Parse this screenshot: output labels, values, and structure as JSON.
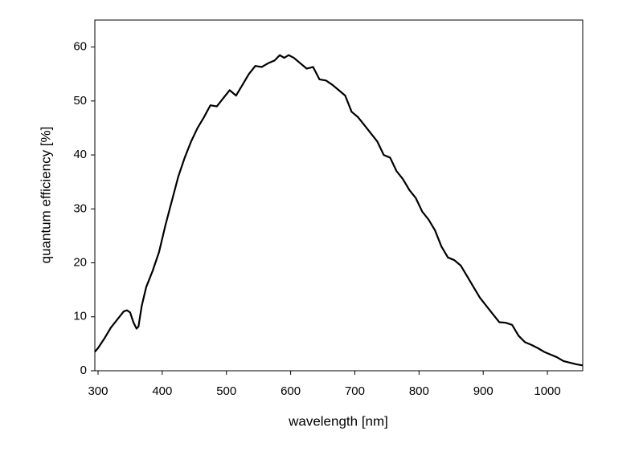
{
  "chart_data": {
    "type": "line",
    "x_label": "wavelength [nm]",
    "y_label": "quantum efficiency [%]",
    "x": [
      295,
      300,
      310,
      320,
      330,
      340,
      345,
      350,
      355,
      360,
      363,
      368,
      375,
      385,
      395,
      405,
      415,
      425,
      435,
      445,
      455,
      465,
      475,
      485,
      495,
      505,
      515,
      525,
      535,
      545,
      555,
      565,
      575,
      583,
      590,
      597,
      605,
      615,
      625,
      635,
      645,
      655,
      665,
      675,
      685,
      695,
      705,
      715,
      725,
      735,
      745,
      755,
      765,
      775,
      785,
      795,
      805,
      815,
      825,
      835,
      845,
      855,
      865,
      875,
      885,
      895,
      905,
      915,
      925,
      935,
      945,
      955,
      965,
      975,
      985,
      995,
      1005,
      1015,
      1025,
      1035,
      1045,
      1055
    ],
    "values": [
      3.5,
      4.2,
      6,
      8,
      9.5,
      11,
      11.2,
      10.8,
      9,
      7.8,
      8.2,
      12,
      15.5,
      18.5,
      22,
      27,
      31.5,
      36,
      39.5,
      42.5,
      45,
      47,
      49.2,
      49,
      50.5,
      52,
      51,
      53,
      55,
      56.5,
      56.3,
      57,
      57.5,
      58.5,
      58,
      58.5,
      58,
      57,
      56,
      56.3,
      54,
      53.8,
      53,
      52,
      51,
      48,
      47,
      45.5,
      44,
      42.5,
      40,
      39.5,
      37,
      35.5,
      33.5,
      32,
      29.5,
      28,
      26,
      23,
      21,
      20.5,
      19.5,
      17.5,
      15.5,
      13.5,
      12,
      10.5,
      9,
      8.9,
      8.5,
      6.5,
      5.3,
      4.8,
      4.2,
      3.5,
      3,
      2.5,
      1.8,
      1.5,
      1.2,
      1.0
    ],
    "color": "#000000",
    "xlim": [
      295,
      1055
    ],
    "ylim": [
      0,
      65
    ],
    "xticks": [
      300,
      400,
      500,
      600,
      700,
      800,
      900,
      1000
    ],
    "yticks": [
      0,
      10,
      20,
      30,
      40,
      50,
      60
    ]
  }
}
